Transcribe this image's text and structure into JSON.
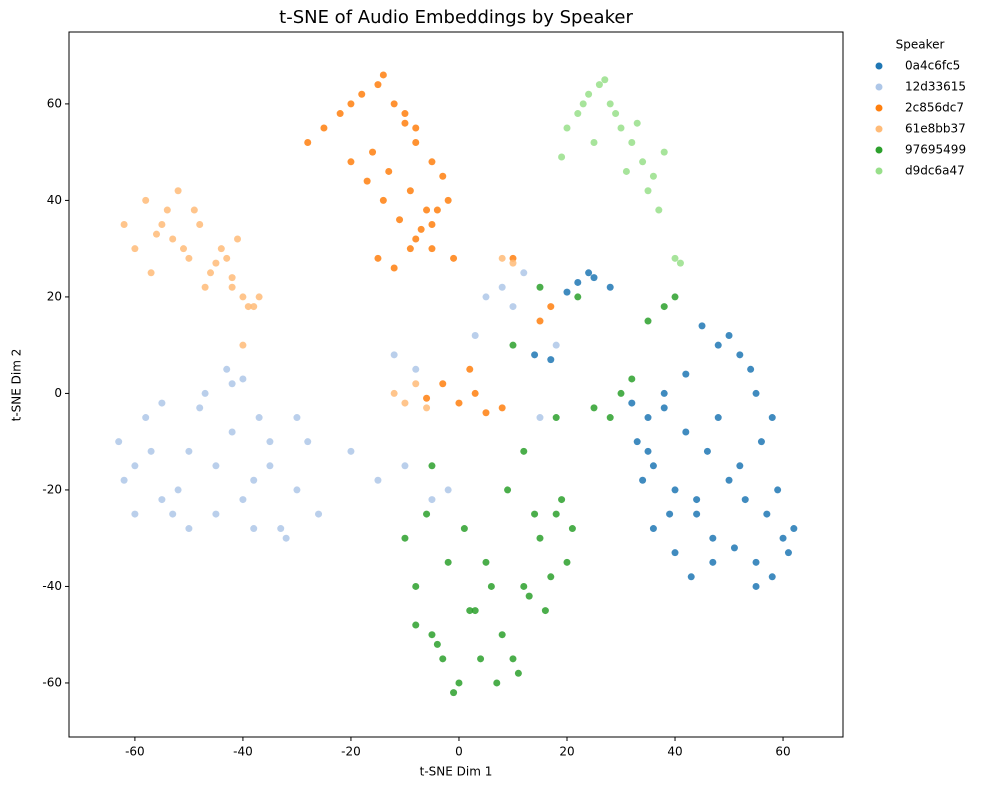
{
  "chart_data": {
    "type": "scatter",
    "title": "t-SNE of Audio Embeddings by Speaker",
    "x_label": "t-SNE Dim 1",
    "y_label": "t-SNE Dim 2",
    "legend_title": "Speaker",
    "legend": "outside-right",
    "xlim": [
      -72.2,
      71.1
    ],
    "ylim": [
      -71.2,
      74.9
    ],
    "xticks": [
      -60,
      -40,
      -20,
      0,
      20,
      40,
      60
    ],
    "yticks": [
      -60,
      -40,
      -20,
      0,
      20,
      40,
      60
    ],
    "grid": false,
    "series": [
      {
        "name": "0a4c6fc5",
        "color": "#1f77b4",
        "x": [
          22,
          25,
          28,
          20,
          24,
          14,
          17,
          45,
          50,
          52,
          48,
          42,
          38,
          35,
          33,
          36,
          40,
          44,
          47,
          55,
          58,
          60,
          62,
          57,
          53,
          50,
          46,
          42,
          38,
          34,
          32,
          36,
          40,
          44,
          48,
          52,
          56,
          59,
          55,
          51,
          47,
          43,
          39,
          35,
          55,
          58,
          61,
          54
        ],
        "values": [
          23,
          24,
          22,
          21,
          25,
          8,
          7,
          14,
          12,
          8,
          10,
          4,
          0,
          -5,
          -10,
          -15,
          -20,
          -25,
          -30,
          -35,
          -38,
          -30,
          -28,
          -25,
          -22,
          -18,
          -12,
          -8,
          -3,
          -18,
          -2,
          -28,
          -33,
          -22,
          -5,
          -15,
          -10,
          -20,
          -40,
          -32,
          -35,
          -38,
          -25,
          -12,
          0,
          -5,
          -33,
          5
        ]
      },
      {
        "name": "12d33615",
        "color": "#aec7e8",
        "x": [
          -63,
          -60,
          -58,
          -55,
          -52,
          -50,
          -48,
          -45,
          -42,
          -40,
          -38,
          -35,
          -33,
          -30,
          -28,
          -26,
          -62,
          -57,
          -53,
          -47,
          -43,
          -37,
          -32,
          -55,
          -45,
          -40,
          -35,
          -50,
          -30,
          -20,
          -15,
          -10,
          -5,
          5,
          8,
          10,
          12,
          3,
          -8,
          15,
          18,
          -12,
          -2,
          -38,
          -42,
          -60
        ],
        "values": [
          -10,
          -15,
          -5,
          -2,
          -20,
          -12,
          -3,
          -25,
          -8,
          -22,
          -18,
          -15,
          -28,
          -20,
          -10,
          -25,
          -18,
          -12,
          -25,
          0,
          5,
          -5,
          -30,
          -22,
          -15,
          3,
          -10,
          -28,
          -5,
          -12,
          -18,
          -15,
          -22,
          20,
          22,
          18,
          25,
          12,
          5,
          -5,
          10,
          8,
          -20,
          -28,
          2,
          -25
        ]
      },
      {
        "name": "2c856dc7",
        "color": "#ff7f0e",
        "x": [
          -28,
          -25,
          -22,
          -20,
          -18,
          -15,
          -12,
          -10,
          -8,
          -5,
          -3,
          -2,
          -16,
          -13,
          -9,
          -6,
          -20,
          -17,
          -14,
          -11,
          -8,
          -5,
          -15,
          -12,
          -9,
          -7,
          -4,
          -1,
          -14,
          -10,
          -8,
          -5,
          0,
          3,
          5,
          8,
          -3,
          2,
          -6,
          10,
          15,
          17
        ],
        "values": [
          52,
          55,
          58,
          60,
          62,
          64,
          60,
          56,
          52,
          48,
          45,
          40,
          50,
          46,
          42,
          38,
          48,
          44,
          40,
          36,
          32,
          30,
          28,
          26,
          30,
          34,
          38,
          28,
          66,
          58,
          55,
          35,
          -2,
          0,
          -4,
          -3,
          2,
          5,
          -1,
          28,
          15,
          18
        ]
      },
      {
        "name": "61e8bb37",
        "color": "#ffbb78",
        "x": [
          -62,
          -60,
          -58,
          -56,
          -54,
          -52,
          -50,
          -48,
          -46,
          -44,
          -42,
          -40,
          -38,
          -57,
          -53,
          -49,
          -45,
          -41,
          -55,
          -51,
          -47,
          -43,
          -42,
          -39,
          -37,
          -12,
          -10,
          -8,
          -6,
          8,
          10,
          -40
        ],
        "values": [
          35,
          30,
          40,
          33,
          38,
          42,
          28,
          35,
          25,
          30,
          22,
          20,
          18,
          25,
          32,
          38,
          27,
          32,
          35,
          30,
          22,
          28,
          24,
          18,
          20,
          0,
          -2,
          2,
          -3,
          28,
          27,
          10
        ]
      },
      {
        "name": "97695499",
        "color": "#2ca02c",
        "x": [
          -10,
          -8,
          -5,
          -3,
          0,
          2,
          5,
          8,
          10,
          12,
          15,
          18,
          20,
          -6,
          -2,
          3,
          7,
          11,
          16,
          -4,
          1,
          6,
          -8,
          -1,
          4,
          9,
          13,
          17,
          21,
          14,
          19,
          12,
          18,
          25,
          30,
          35,
          38,
          40,
          22,
          28,
          32,
          10,
          15,
          -5
        ],
        "values": [
          -30,
          -40,
          -50,
          -55,
          -60,
          -45,
          -35,
          -50,
          -55,
          -40,
          -30,
          -25,
          -35,
          -25,
          -35,
          -45,
          -60,
          -58,
          -45,
          -52,
          -28,
          -40,
          -48,
          -62,
          -55,
          -20,
          -42,
          -38,
          -28,
          -25,
          -22,
          -12,
          -5,
          -3,
          0,
          15,
          18,
          20,
          20,
          -5,
          3,
          10,
          22,
          -15
        ]
      },
      {
        "name": "d9dc6a47",
        "color": "#98df8a",
        "x": [
          20,
          22,
          24,
          26,
          28,
          30,
          32,
          34,
          36,
          38,
          25,
          29,
          33,
          35,
          37,
          23,
          27,
          31,
          40,
          41,
          19
        ],
        "values": [
          55,
          58,
          62,
          64,
          60,
          55,
          52,
          48,
          45,
          50,
          52,
          58,
          56,
          42,
          38,
          60,
          65,
          46,
          28,
          27,
          49
        ]
      }
    ]
  }
}
